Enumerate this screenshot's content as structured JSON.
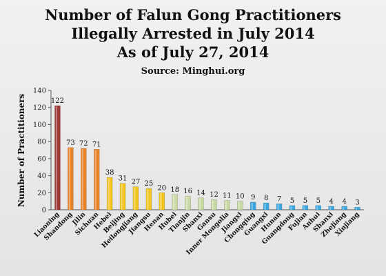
{
  "chart_data": {
    "type": "bar",
    "title": [
      "Number of Falun Gong Practitioners",
      "Illegally Arrested in July 2014",
      "As of July 27, 2014"
    ],
    "subtitle": "Source: Minghui.org",
    "xlabel": "",
    "ylabel": "Number of Practitioners",
    "ylim": [
      0,
      140
    ],
    "yticks": [
      0,
      20,
      40,
      60,
      80,
      100,
      120,
      140
    ],
    "grid": false,
    "categories": [
      "Liaoning",
      "Shandong",
      "Jilin",
      "Sichuan",
      "Hebei",
      "Beijing",
      "Heilongjiang",
      "Jiangsu",
      "Henan",
      "Hubei",
      "Tianjin",
      "Shanxi",
      "Gansu",
      "Inner Mongolia",
      "Jiangxi",
      "Chongqing",
      "Guangxi",
      "Hunan",
      "Guangdong",
      "Fujian",
      "Anhui",
      "Shanxi",
      "Zhejiang",
      "Xinjiang"
    ],
    "values": [
      122,
      73,
      72,
      71,
      38,
      31,
      27,
      25,
      20,
      18,
      16,
      14,
      12,
      11,
      10,
      9,
      8,
      7,
      5,
      5,
      5,
      4,
      4,
      3
    ],
    "bar_colors": [
      "#9e3a36",
      "#e8832a",
      "#e8832a",
      "#e8832a",
      "#f3c61f",
      "#f3c61f",
      "#f3c61f",
      "#f3c61f",
      "#f3c61f",
      "#c9d9a4",
      "#c9d9a4",
      "#c9d9a4",
      "#c9d9a4",
      "#c9d9a4",
      "#c9d9a4",
      "#3ba7e0",
      "#3ba7e0",
      "#3ba7e0",
      "#3ba7e0",
      "#3ba7e0",
      "#3ba7e0",
      "#3ba7e0",
      "#3ba7e0",
      "#3ba7e0"
    ]
  }
}
